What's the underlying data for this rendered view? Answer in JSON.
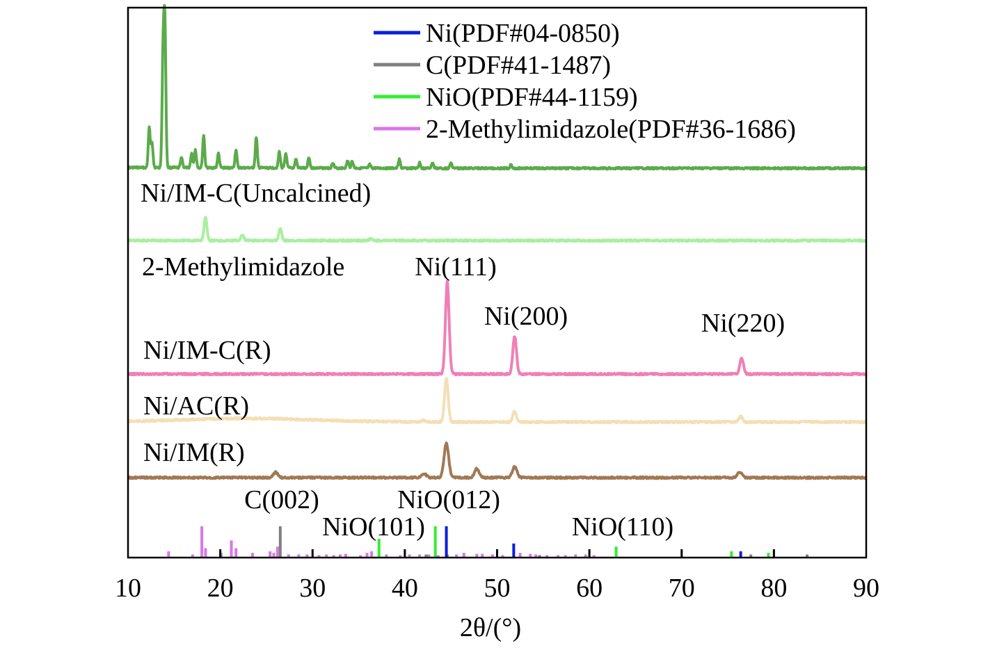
{
  "chart_data": {
    "type": "line",
    "xlabel": "2θ/(°)",
    "ylabel": "",
    "xlim": [
      10,
      90
    ],
    "xticks": [
      10,
      20,
      30,
      40,
      50,
      60,
      70,
      80,
      90
    ],
    "grid": false,
    "legend": {
      "placement": "top-right",
      "entries": [
        {
          "label": "Ni(PDF#04-0850)",
          "color": "#0a1ee0"
        },
        {
          "label": "C(PDF#41-1487)",
          "color": "#808080"
        },
        {
          "label": "NiO(PDF#44-1159)",
          "color": "#33ee33"
        },
        {
          "label": "2-Methylimidazole(PDF#36-1686)",
          "color": "#d977ea"
        }
      ]
    },
    "series": [
      {
        "name": "Ni/IM-C(Uncalcined)",
        "color": "#5bab4b",
        "baseline": 0.0,
        "peaks": [
          [
            12.3,
            0.22
          ],
          [
            12.6,
            0.14
          ],
          [
            13.8,
            0.62
          ],
          [
            14.0,
            0.75
          ],
          [
            15.8,
            0.06
          ],
          [
            16.9,
            0.08
          ],
          [
            17.3,
            0.1
          ],
          [
            18.2,
            0.18
          ],
          [
            19.8,
            0.08
          ],
          [
            21.7,
            0.1
          ],
          [
            23.9,
            0.17
          ],
          [
            26.4,
            0.09
          ],
          [
            27.1,
            0.08
          ],
          [
            28.2,
            0.05
          ],
          [
            29.6,
            0.06
          ],
          [
            32.2,
            0.03
          ],
          [
            33.8,
            0.04
          ],
          [
            34.3,
            0.04
          ],
          [
            36.2,
            0.02
          ],
          [
            39.4,
            0.05
          ],
          [
            41.6,
            0.03
          ],
          [
            43.0,
            0.03
          ],
          [
            45.0,
            0.03
          ],
          [
            51.5,
            0.02
          ]
        ]
      },
      {
        "name": "2-Methylimidazole",
        "color": "#a9efa1",
        "baseline": 0.0,
        "peaks": [
          [
            18.4,
            0.13
          ],
          [
            22.4,
            0.03
          ],
          [
            26.5,
            0.07
          ],
          [
            36.3,
            0.01
          ]
        ]
      },
      {
        "name": "Ni/IM-C(R)",
        "color": "#f07fb7",
        "baseline": 0.0,
        "peaks": [
          [
            44.6,
            0.51
          ],
          [
            51.9,
            0.21
          ],
          [
            76.5,
            0.09
          ]
        ]
      },
      {
        "name": "Ni/AC(R)",
        "color": "#f3dfb5",
        "baseline": 0.0,
        "peaks": [
          [
            44.5,
            0.24
          ],
          [
            51.9,
            0.06
          ],
          [
            76.4,
            0.03
          ],
          [
            42.0,
            0.01
          ]
        ]
      },
      {
        "name": "Ni/IM(R)",
        "color": "#a27854",
        "baseline": 0.0,
        "peaks": [
          [
            26.0,
            0.03
          ],
          [
            42.1,
            0.02
          ],
          [
            44.5,
            0.19
          ],
          [
            47.8,
            0.05
          ],
          [
            51.9,
            0.06
          ],
          [
            76.3,
            0.03
          ]
        ]
      }
    ],
    "reference_lines": {
      "Ni": {
        "color": "#0a1ee0",
        "positions": [
          [
            44.5,
            1.0
          ],
          [
            51.8,
            0.45
          ],
          [
            76.4,
            0.2
          ]
        ]
      },
      "C": {
        "color": "#808080",
        "positions": [
          [
            26.5,
            1.0
          ],
          [
            42.3,
            0.1
          ],
          [
            44.6,
            0.1
          ],
          [
            54.6,
            0.08
          ],
          [
            77.5,
            0.1
          ],
          [
            83.6,
            0.1
          ]
        ]
      },
      "NiO": {
        "color": "#33ee33",
        "positions": [
          [
            37.2,
            0.6
          ],
          [
            43.3,
            1.0
          ],
          [
            62.9,
            0.35
          ],
          [
            75.4,
            0.2
          ],
          [
            79.4,
            0.15
          ]
        ]
      },
      "2-Methylimidazole": {
        "color": "#d977ea",
        "positions": [
          [
            14.4,
            0.2
          ],
          [
            17.0,
            0.1
          ],
          [
            18.0,
            1.0
          ],
          [
            18.4,
            0.3
          ],
          [
            20.1,
            0.15
          ],
          [
            21.2,
            0.55
          ],
          [
            21.7,
            0.3
          ],
          [
            23.5,
            0.15
          ],
          [
            25.4,
            0.2
          ],
          [
            25.8,
            0.15
          ],
          [
            26.2,
            0.35
          ],
          [
            27.4,
            0.1
          ],
          [
            28.5,
            0.1
          ],
          [
            29.4,
            0.1
          ],
          [
            30.7,
            0.08
          ],
          [
            31.5,
            0.1
          ],
          [
            32.3,
            0.08
          ],
          [
            33.0,
            0.1
          ],
          [
            33.6,
            0.12
          ],
          [
            35.2,
            0.08
          ],
          [
            35.9,
            0.15
          ],
          [
            36.4,
            0.2
          ],
          [
            38.0,
            0.1
          ],
          [
            39.5,
            0.08
          ],
          [
            40.5,
            0.1
          ],
          [
            41.6,
            0.1
          ],
          [
            42.6,
            0.1
          ],
          [
            43.6,
            0.08
          ],
          [
            45.6,
            0.1
          ],
          [
            46.4,
            0.15
          ],
          [
            47.8,
            0.12
          ],
          [
            48.4,
            0.12
          ],
          [
            49.5,
            0.1
          ],
          [
            50.6,
            0.08
          ],
          [
            52.5,
            0.15
          ],
          [
            53.6,
            0.12
          ],
          [
            54.2,
            0.1
          ],
          [
            55.4,
            0.08
          ],
          [
            56.6,
            0.08
          ],
          [
            57.4,
            0.08
          ],
          [
            58.5,
            0.1
          ],
          [
            59.6,
            0.1
          ],
          [
            60.5,
            0.08
          ]
        ]
      },
      "ticks_black": [
        20.0,
        30.0,
        40.0,
        50.0,
        60.0,
        70.0,
        80.0
      ]
    },
    "annotations": [
      {
        "text": "Ni(111)",
        "x": 44.6
      },
      {
        "text": "Ni(200)",
        "x": 51.9
      },
      {
        "text": "Ni(220)",
        "x": 76.4
      },
      {
        "text": "C(002)",
        "x": 26.5
      },
      {
        "text": "NiO(101)",
        "x": 37.2
      },
      {
        "text": "NiO(012)",
        "x": 43.3
      },
      {
        "text": "NiO(110)",
        "x": 62.9
      }
    ]
  }
}
